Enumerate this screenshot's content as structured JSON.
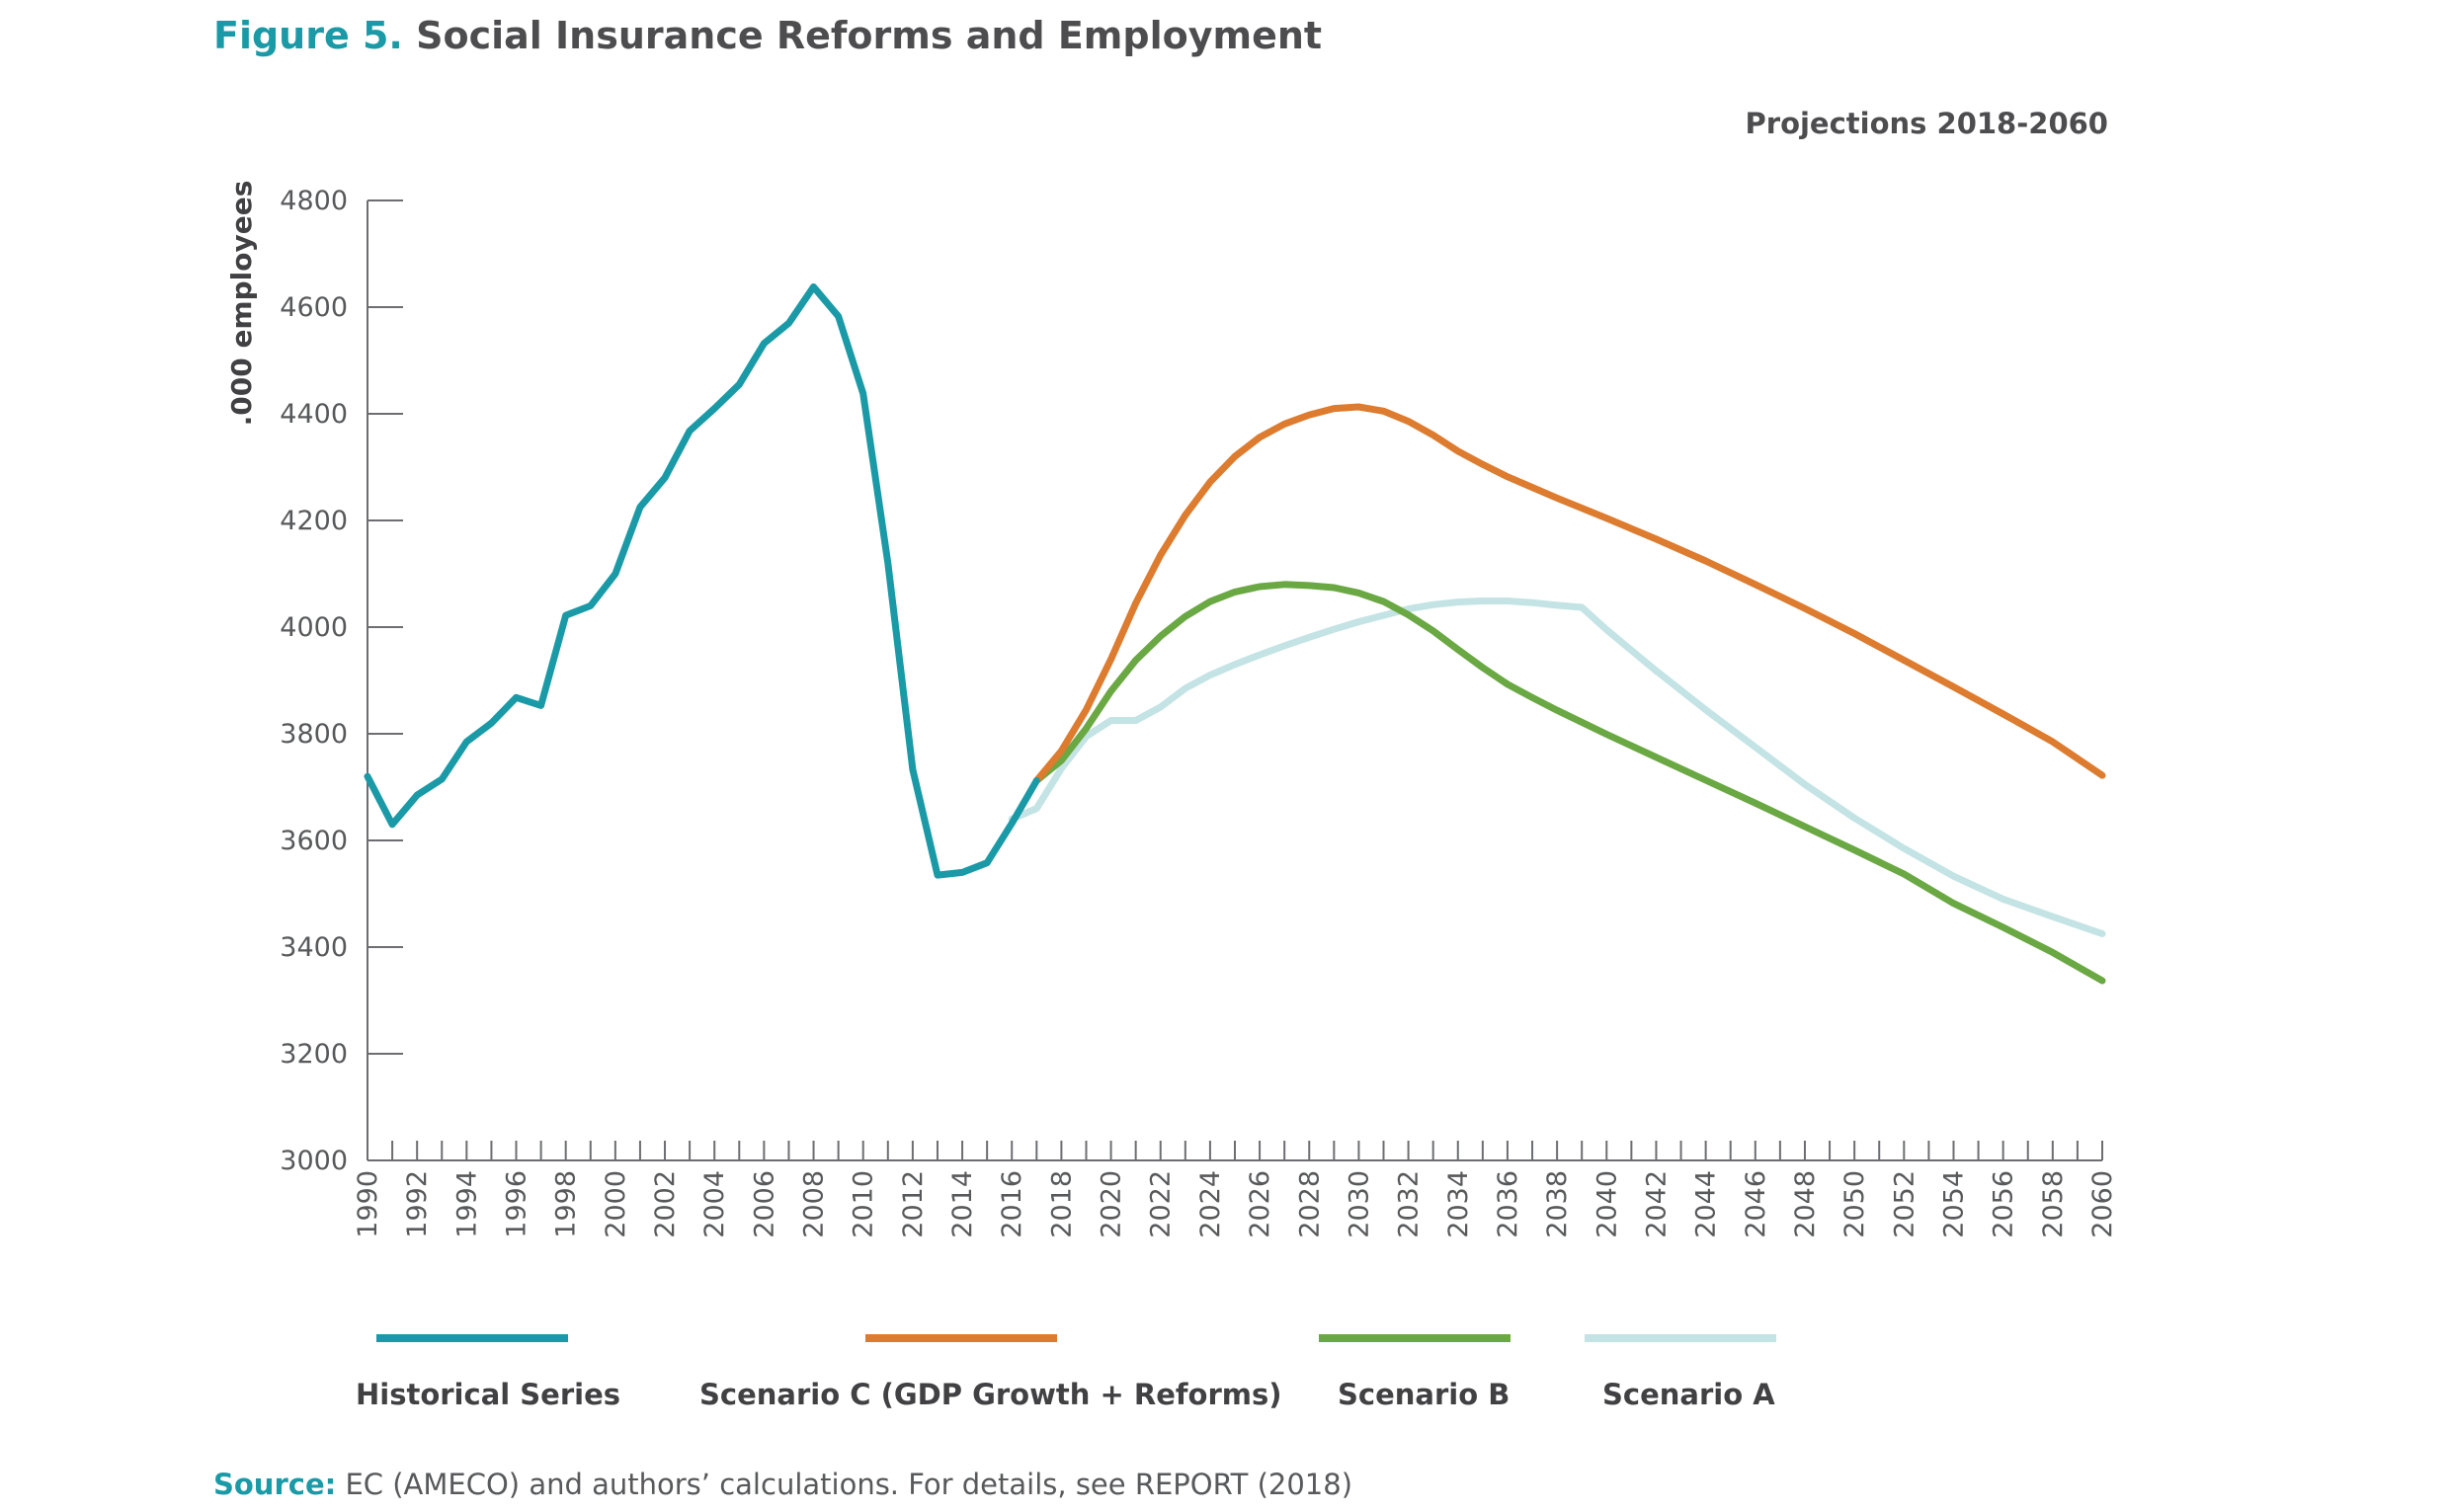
{
  "figure": {
    "label": "Figure 5.",
    "title": "Social Insurance Reforms and Employment",
    "subtitle": "Projections 2018-2060"
  },
  "source": {
    "label": "Source:",
    "text": "EC (AMECO) and authors’ calculations. For details, see REPORT (2018)"
  },
  "chart_data": {
    "type": "line",
    "title": "Social Insurance Reforms and Employment",
    "subtitle": "Projections 2018-2060",
    "xlabel": "",
    "ylabel": ".000 employees",
    "xlim": [
      1990,
      2060
    ],
    "ylim": [
      3000,
      4800
    ],
    "y_ticks": [
      3000,
      3200,
      3400,
      3600,
      3800,
      4000,
      4200,
      4400,
      4600,
      4800
    ],
    "x_tick_labels": [
      "1990",
      "1992",
      "1994",
      "1996",
      "1998",
      "2000",
      "2002",
      "2004",
      "2006",
      "2008",
      "2010",
      "2012",
      "2014",
      "2016",
      "2018",
      "2020",
      "2022",
      "2024",
      "2026",
      "2028",
      "2030",
      "2032",
      "2034",
      "2036",
      "2038",
      "2040",
      "2042",
      "2044",
      "2046",
      "2048",
      "2050",
      "2052",
      "2054",
      "2056",
      "2058",
      "2060"
    ],
    "grid": false,
    "legend_position": "bottom",
    "series": [
      {
        "name": "Historical Series",
        "color": "#1a9aa6",
        "points": [
          [
            1990,
            3720
          ],
          [
            1991,
            3630
          ],
          [
            1992,
            3685
          ],
          [
            1993,
            3715
          ],
          [
            1994,
            3785
          ],
          [
            1995,
            3820
          ],
          [
            1996,
            3868
          ],
          [
            1997,
            3853
          ],
          [
            1998,
            4022
          ],
          [
            1999,
            4040
          ],
          [
            2000,
            4100
          ],
          [
            2001,
            4225
          ],
          [
            2002,
            4280
          ],
          [
            2003,
            4368
          ],
          [
            2004,
            4410
          ],
          [
            2005,
            4455
          ],
          [
            2006,
            4532
          ],
          [
            2007,
            4570
          ],
          [
            2008,
            4638
          ],
          [
            2009,
            4583
          ],
          [
            2010,
            4438
          ],
          [
            2011,
            4120
          ],
          [
            2012,
            3733
          ],
          [
            2013,
            3535
          ],
          [
            2014,
            3540
          ],
          [
            2015,
            3558
          ],
          [
            2016,
            3632
          ],
          [
            2017,
            3712
          ]
        ]
      },
      {
        "name": "Scenario C (GDP Growth + Reforms)",
        "color": "#dd7b2f",
        "points": [
          [
            2017,
            3712
          ],
          [
            2018,
            3768
          ],
          [
            2019,
            3845
          ],
          [
            2020,
            3940
          ],
          [
            2021,
            4045
          ],
          [
            2022,
            4135
          ],
          [
            2023,
            4210
          ],
          [
            2024,
            4272
          ],
          [
            2025,
            4320
          ],
          [
            2026,
            4356
          ],
          [
            2027,
            4381
          ],
          [
            2028,
            4398
          ],
          [
            2029,
            4410
          ],
          [
            2030,
            4413
          ],
          [
            2031,
            4405
          ],
          [
            2032,
            4386
          ],
          [
            2033,
            4360
          ],
          [
            2034,
            4330
          ],
          [
            2035,
            4305
          ],
          [
            2036,
            4282
          ],
          [
            2037,
            4262
          ],
          [
            2038,
            4242
          ],
          [
            2040,
            4204
          ],
          [
            2042,
            4165
          ],
          [
            2044,
            4124
          ],
          [
            2046,
            4080
          ],
          [
            2048,
            4035
          ],
          [
            2050,
            3988
          ],
          [
            2052,
            3938
          ],
          [
            2054,
            3888
          ],
          [
            2056,
            3837
          ],
          [
            2058,
            3785
          ],
          [
            2060,
            3722
          ]
        ]
      },
      {
        "name": "Scenario B",
        "color": "#6aa843",
        "points": [
          [
            2017,
            3712
          ],
          [
            2018,
            3750
          ],
          [
            2019,
            3810
          ],
          [
            2020,
            3880
          ],
          [
            2021,
            3938
          ],
          [
            2022,
            3983
          ],
          [
            2023,
            4020
          ],
          [
            2024,
            4048
          ],
          [
            2025,
            4066
          ],
          [
            2026,
            4076
          ],
          [
            2027,
            4080
          ],
          [
            2028,
            4078
          ],
          [
            2029,
            4074
          ],
          [
            2030,
            4064
          ],
          [
            2031,
            4048
          ],
          [
            2032,
            4023
          ],
          [
            2033,
            3993
          ],
          [
            2034,
            3958
          ],
          [
            2035,
            3924
          ],
          [
            2036,
            3893
          ],
          [
            2037,
            3868
          ],
          [
            2038,
            3844
          ],
          [
            2040,
            3799
          ],
          [
            2042,
            3756
          ],
          [
            2044,
            3713
          ],
          [
            2046,
            3670
          ],
          [
            2048,
            3626
          ],
          [
            2050,
            3582
          ],
          [
            2052,
            3537
          ],
          [
            2054,
            3482
          ],
          [
            2056,
            3437
          ],
          [
            2058,
            3390
          ],
          [
            2060,
            3337
          ]
        ]
      },
      {
        "name": "Scenario A",
        "color": "#c3e3e4",
        "points": [
          [
            2016,
            3640
          ],
          [
            2017,
            3660
          ],
          [
            2018,
            3735
          ],
          [
            2019,
            3795
          ],
          [
            2020,
            3825
          ],
          [
            2021,
            3825
          ],
          [
            2022,
            3850
          ],
          [
            2023,
            3885
          ],
          [
            2024,
            3910
          ],
          [
            2025,
            3930
          ],
          [
            2026,
            3948
          ],
          [
            2027,
            3965
          ],
          [
            2028,
            3981
          ],
          [
            2029,
            3996
          ],
          [
            2030,
            4010
          ],
          [
            2031,
            4022
          ],
          [
            2032,
            4034
          ],
          [
            2033,
            4042
          ],
          [
            2034,
            4047
          ],
          [
            2035,
            4049
          ],
          [
            2036,
            4049
          ],
          [
            2037,
            4046
          ],
          [
            2038,
            4041
          ],
          [
            2039,
            4037
          ],
          [
            2040,
            3995
          ],
          [
            2042,
            3918
          ],
          [
            2044,
            3845
          ],
          [
            2046,
            3775
          ],
          [
            2048,
            3705
          ],
          [
            2050,
            3642
          ],
          [
            2052,
            3585
          ],
          [
            2054,
            3533
          ],
          [
            2056,
            3490
          ],
          [
            2058,
            3457
          ],
          [
            2060,
            3425
          ]
        ]
      }
    ]
  }
}
